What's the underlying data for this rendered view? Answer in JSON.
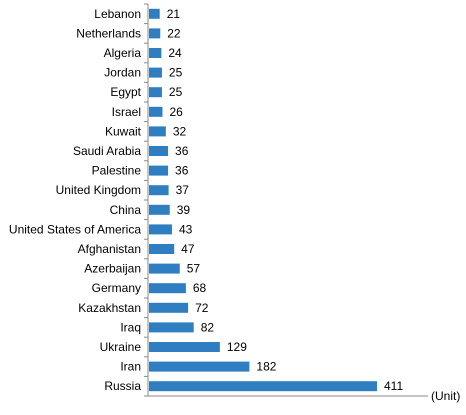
{
  "chart_data": {
    "type": "bar",
    "orientation": "horizontal",
    "categories": [
      "Lebanon",
      "Netherlands",
      "Algeria",
      "Jordan",
      "Egypt",
      "Israel",
      "Kuwait",
      "Saudi Arabia",
      "Palestine",
      "United Kingdom",
      "China",
      "United States of America",
      "Afghanistan",
      "Azerbaijan",
      "Germany",
      "Kazakhstan",
      "Iraq",
      "Ukraine",
      "Iran",
      "Russia"
    ],
    "values": [
      21,
      22,
      24,
      25,
      25,
      26,
      32,
      36,
      36,
      37,
      39,
      43,
      47,
      57,
      68,
      72,
      82,
      129,
      182,
      411
    ],
    "value_labels": [
      "21",
      "22",
      "24",
      "25",
      "25",
      "26",
      "32",
      "36",
      "36",
      "37",
      "39",
      "43",
      "47",
      "57",
      "68",
      "72",
      "82",
      "129",
      "182",
      "411"
    ],
    "unit_label": "(Unit)",
    "xlim": [
      0,
      411
    ],
    "bar_color": "#2e7ec1",
    "grid": false,
    "legend": "none"
  }
}
